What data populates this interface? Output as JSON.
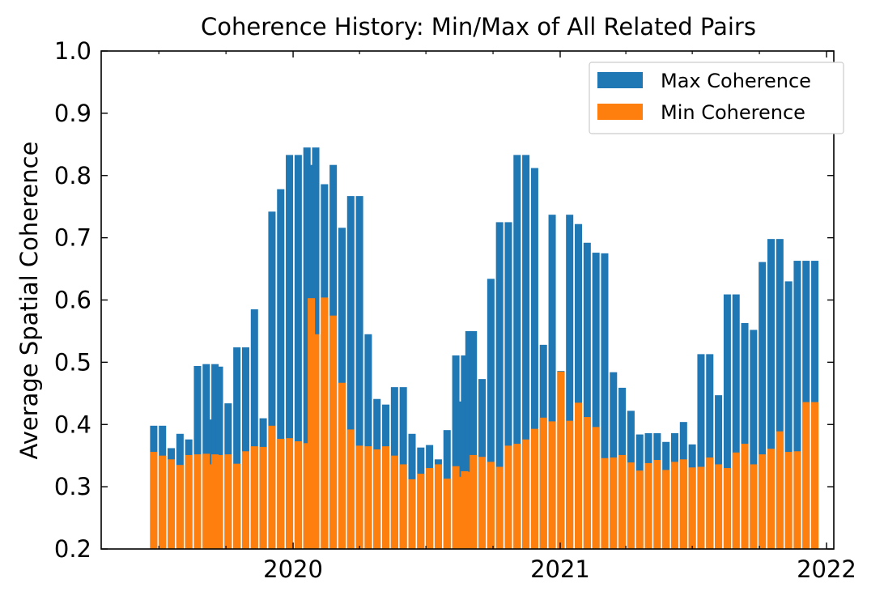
{
  "chart_data": {
    "type": "bar",
    "title": "Coherence History: Min/Max of All Related Pairs",
    "xlabel": "",
    "ylabel": "Average Spatial Coherence",
    "xlim": [
      "2019-04-13",
      "2022-01-11"
    ],
    "ylim": [
      0.2,
      1.0
    ],
    "x_ticks": [
      "2020",
      "2021",
      "2022"
    ],
    "y_ticks": [
      "0.2",
      "0.3",
      "0.4",
      "0.5",
      "0.6",
      "0.7",
      "0.8",
      "0.9",
      "1.0"
    ],
    "grid": false,
    "legend": "top-right",
    "colors": {
      "max": "#1f77b4",
      "min": "#ff7f0e"
    },
    "dates": [
      "2019-06-24",
      "2019-07-06",
      "2019-07-18",
      "2019-07-30",
      "2019-08-11",
      "2019-08-23",
      "2019-09-04",
      "2019-09-10",
      "2019-09-16",
      "2019-09-22",
      "2019-10-04",
      "2019-10-16",
      "2019-10-28",
      "2019-11-09",
      "2019-11-21",
      "2019-12-03",
      "2019-12-15",
      "2019-12-27",
      "2020-01-08",
      "2020-01-20",
      "2020-01-26",
      "2020-02-01",
      "2020-02-13",
      "2020-02-25",
      "2020-03-08",
      "2020-03-20",
      "2020-04-01",
      "2020-04-13",
      "2020-04-25",
      "2020-05-07",
      "2020-05-19",
      "2020-05-31",
      "2020-06-12",
      "2020-06-24",
      "2020-07-06",
      "2020-07-18",
      "2020-07-30",
      "2020-08-11",
      "2020-08-17",
      "2020-08-23",
      "2020-08-29",
      "2020-09-04",
      "2020-09-16",
      "2020-09-28",
      "2020-10-10",
      "2020-10-22",
      "2020-11-03",
      "2020-11-15",
      "2020-11-27",
      "2020-12-09",
      "2020-12-21",
      "2021-01-02",
      "2021-01-14",
      "2021-01-26",
      "2021-02-07",
      "2021-02-19",
      "2021-03-03",
      "2021-03-15",
      "2021-03-27",
      "2021-04-08",
      "2021-04-20",
      "2021-05-02",
      "2021-05-14",
      "2021-05-26",
      "2021-06-07",
      "2021-06-19",
      "2021-07-01",
      "2021-07-13",
      "2021-07-25",
      "2021-08-06",
      "2021-08-18",
      "2021-08-30",
      "2021-09-11",
      "2021-09-23",
      "2021-10-05",
      "2021-10-17",
      "2021-10-29",
      "2021-11-10",
      "2021-11-22",
      "2021-12-04",
      "2021-12-16"
    ],
    "series": [
      {
        "name": "Max Coherence",
        "values": [
          0.398,
          0.398,
          0.362,
          0.385,
          0.376,
          0.494,
          0.497,
          0.408,
          0.497,
          0.493,
          0.434,
          0.524,
          0.524,
          0.585,
          0.41,
          0.742,
          0.778,
          0.833,
          0.833,
          0.845,
          0.817,
          0.845,
          0.786,
          0.817,
          0.716,
          0.767,
          0.767,
          0.545,
          0.441,
          0.432,
          0.46,
          0.46,
          0.385,
          0.363,
          0.367,
          0.344,
          0.391,
          0.511,
          0.437,
          0.511,
          0.55,
          0.55,
          0.473,
          0.634,
          0.725,
          0.725,
          0.833,
          0.833,
          0.812,
          0.528,
          0.737,
          0.486,
          0.737,
          0.722,
          0.692,
          0.676,
          0.675,
          0.484,
          0.459,
          0.422,
          0.384,
          0.386,
          0.386,
          0.372,
          0.386,
          0.404,
          0.368,
          0.513,
          0.513,
          0.447,
          0.609,
          0.609,
          0.563,
          0.552,
          0.661,
          0.698,
          0.698,
          0.63,
          0.663,
          0.663,
          0.663
        ]
      },
      {
        "name": "Min Coherence",
        "values": [
          0.356,
          0.35,
          0.344,
          0.335,
          0.351,
          0.352,
          0.353,
          0.336,
          0.352,
          0.351,
          0.352,
          0.337,
          0.357,
          0.365,
          0.364,
          0.398,
          0.377,
          0.378,
          0.373,
          0.37,
          0.603,
          0.545,
          0.604,
          0.575,
          0.467,
          0.392,
          0.366,
          0.365,
          0.36,
          0.365,
          0.35,
          0.336,
          0.312,
          0.321,
          0.33,
          0.336,
          0.313,
          0.333,
          0.316,
          0.325,
          0.324,
          0.351,
          0.348,
          0.34,
          0.332,
          0.366,
          0.369,
          0.376,
          0.393,
          0.411,
          0.405,
          0.485,
          0.406,
          0.435,
          0.412,
          0.396,
          0.346,
          0.347,
          0.351,
          0.339,
          0.326,
          0.338,
          0.343,
          0.327,
          0.34,
          0.344,
          0.331,
          0.332,
          0.347,
          0.336,
          0.33,
          0.355,
          0.369,
          0.336,
          0.352,
          0.361,
          0.389,
          0.356,
          0.357,
          0.436,
          0.436
        ]
      }
    ]
  }
}
